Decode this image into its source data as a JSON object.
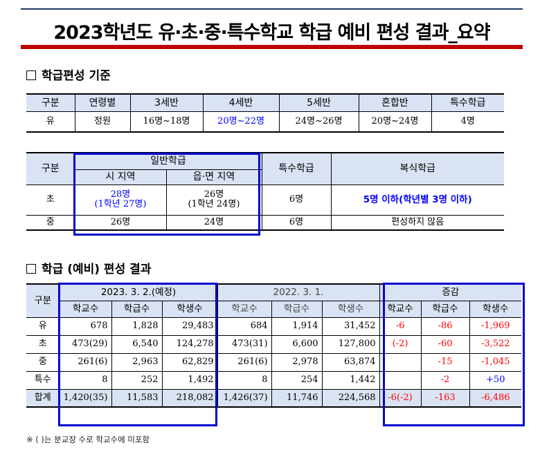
{
  "title": "2023학년도 유·초·중·특수학교 학급 예비 편성 결과_요약",
  "colors": {
    "accent_bar": "#c00000",
    "highlight_box": "#0000d0",
    "header_bg": "#dae3f3",
    "red": "#ff0000",
    "blue": "#0000ff"
  },
  "section1": {
    "heading": "학급편성 기준"
  },
  "table1": {
    "headers": [
      "구분",
      "연령별",
      "3세반",
      "4세반",
      "5세반",
      "혼합반",
      "특수학급"
    ],
    "row": [
      "유",
      "정원",
      "16명~18명",
      "20명~22명",
      "24명~26명",
      "20명~24명",
      "4명"
    ]
  },
  "table2": {
    "h_category": "구분",
    "h_general": "일반학급",
    "h_city": "시 지역",
    "h_town": "읍·면 지역",
    "h_special": "특수학급",
    "h_multi": "복식학급",
    "elem": {
      "label": "초",
      "city_main": "28명",
      "city_sub": "(1학년 27명)",
      "town_main": "26명",
      "town_sub": "(1학년 24명)",
      "special": "6명",
      "multi": "5명 이하(학년별 3명 이하)"
    },
    "middle": {
      "label": "중",
      "city": "26명",
      "town": "24명",
      "special": "6명",
      "multi": "편성하지 않음"
    }
  },
  "section2": {
    "heading": "학급 (예비) 편성 결과"
  },
  "table3": {
    "h_category": "구분",
    "h_group_2023": "2023. 3. 2.(예정)",
    "h_group_2022": "2022. 3. 1.",
    "h_group_diff": "증감",
    "sub_headers": [
      "학교수",
      "학급수",
      "학생수",
      "학교수",
      "학급수",
      "학생수",
      "학교수",
      "학급수",
      "학생수"
    ],
    "rows": [
      {
        "label": "유",
        "cells": [
          "678",
          "1,828",
          "29,483",
          "684",
          "1,914",
          "31,452",
          "-6",
          "-86",
          "-1,969"
        ]
      },
      {
        "label": "초",
        "cells": [
          "473(29)",
          "6,540",
          "124,278",
          "473(31)",
          "6,600",
          "127,800",
          "(-2)",
          "-60",
          "-3,522"
        ]
      },
      {
        "label": "중",
        "cells": [
          "261(6)",
          "2,963",
          "62,829",
          "261(6)",
          "2,978",
          "63,874",
          "",
          "-15",
          "-1,045"
        ]
      },
      {
        "label": "특수",
        "cells": [
          "8",
          "252",
          "1,492",
          "8",
          "254",
          "1,442",
          "",
          "-2",
          "+50"
        ]
      },
      {
        "label": "합계",
        "cells": [
          "1,420(35)",
          "11,583",
          "218,082",
          "1,426(37)",
          "11,746",
          "224,568",
          "-6(-2)",
          "-163",
          "-6,486"
        ]
      }
    ]
  },
  "footnote": "※ ( )는 분교장 수로 학교수에 미포함"
}
